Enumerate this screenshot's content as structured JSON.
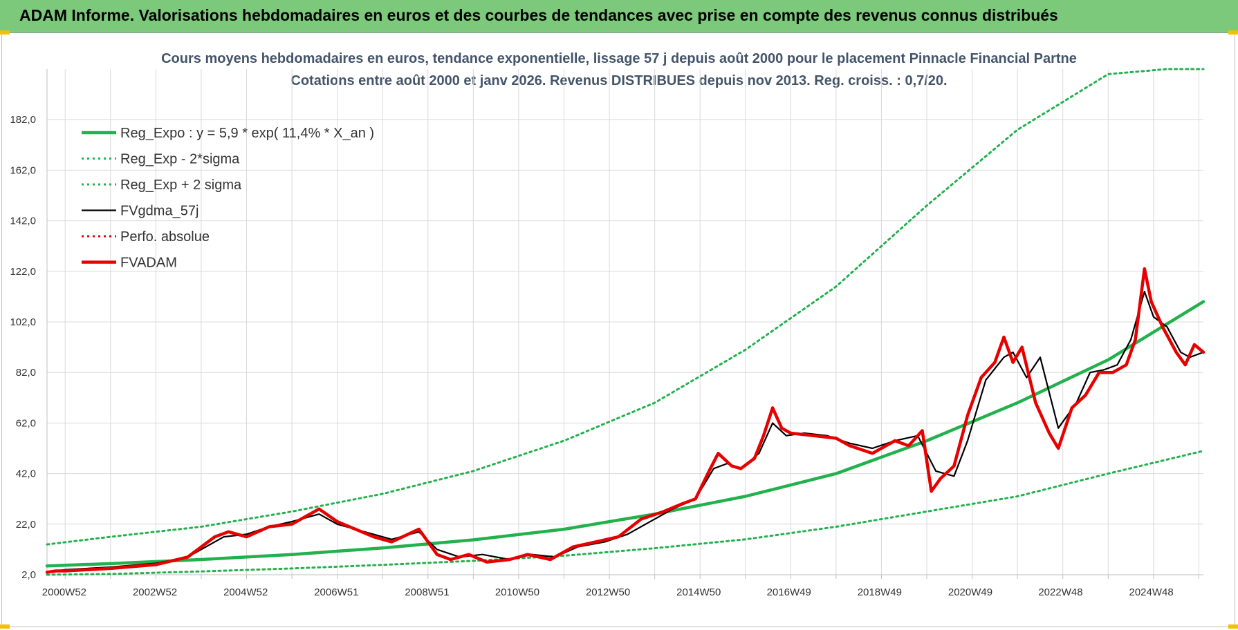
{
  "header": {
    "title": "ADAM Informe. Valorisations hebdomadaires en euros et des courbes de tendances avec prise en compte des revenus connus distribués"
  },
  "chart_data": {
    "type": "line",
    "title": "Cours moyens hebdomadaires en euros, tendance exponentielle, lissage 57 j depuis août 2000 pour le placement Pinnacle Financial Partne",
    "subtitle": "Cotations entre août 2000 et janv 2026. Revenus DISTRIBUES depuis nov 2013. Reg. croiss. : 0,7/20.",
    "xlabel": "",
    "ylabel": "",
    "x_range": [
      2000.6,
      2026.1
    ],
    "ylim": [
      2,
      202
    ],
    "y_ticks": [
      "2,0",
      "22,0",
      "42,0",
      "62,0",
      "82,0",
      "102,0",
      "122,0",
      "142,0",
      "162,0",
      "182,0"
    ],
    "x_ticks": [
      "2000W52",
      "2002W52",
      "2004W52",
      "2006W51",
      "2008W51",
      "2010W50",
      "2012W50",
      "2014W50",
      "2016W49",
      "2018W49",
      "2020W49",
      "2022W48",
      "2024W48"
    ],
    "x_tick_years": [
      2000.98,
      2002.98,
      2004.98,
      2006.98,
      2008.98,
      2010.97,
      2012.97,
      2014.97,
      2016.96,
      2018.96,
      2020.96,
      2022.95,
      2024.95
    ],
    "grid": true,
    "legend_position": "top-left",
    "series": [
      {
        "name": "Reg_Expo : y = 5,9 * exp( 11,4% *  X_an )",
        "color": "#22b14c",
        "style": "solid-thick",
        "x": [
          2000.6,
          2002,
          2004,
          2006,
          2008,
          2010,
          2012,
          2014,
          2016,
          2018,
          2020,
          2022,
          2024,
          2026.1
        ],
        "y": [
          5.5,
          6.4,
          8.0,
          10.0,
          12.6,
          15.8,
          20.0,
          26.0,
          33.0,
          42.0,
          55.0,
          70.0,
          87.0,
          110.0
        ]
      },
      {
        "name": "Reg_Exp - 2*sigma",
        "color": "#22b14c",
        "style": "dotted",
        "x": [
          2000.6,
          2002,
          2004,
          2006,
          2008,
          2010,
          2012,
          2014,
          2016,
          2018,
          2020,
          2022,
          2024,
          2026.1
        ],
        "y": [
          2.0,
          2.3,
          3.3,
          4.5,
          5.9,
          7.5,
          9.5,
          12.5,
          16.0,
          21.0,
          27.0,
          33.0,
          42.0,
          51.0
        ]
      },
      {
        "name": "Reg_Exp + 2 sigma",
        "color": "#22b14c",
        "style": "dotted",
        "x": [
          2000.6,
          2002,
          2004,
          2006,
          2008,
          2010,
          2012,
          2014,
          2016,
          2018,
          2020,
          2022,
          2024,
          2025.3,
          2026.1
        ],
        "y": [
          14.0,
          17.0,
          21.0,
          27.0,
          34.0,
          43.0,
          55.0,
          70.0,
          91.0,
          116.0,
          148.0,
          178.0,
          200.0,
          202.0,
          202.0
        ]
      },
      {
        "name": "FVgdma_57j",
        "color": "#000000",
        "style": "solid",
        "x": [
          2000.6,
          2001,
          2002,
          2003,
          2003.7,
          2004.5,
          2005,
          2005.5,
          2006,
          2006.6,
          2007,
          2007.6,
          2008.2,
          2008.8,
          2009.2,
          2009.7,
          2010.2,
          2010.8,
          2011.3,
          2011.8,
          2012.3,
          2012.9,
          2013.4,
          2013.9,
          2014.4,
          2014.9,
          2015.3,
          2015.6,
          2015.9,
          2016.3,
          2016.6,
          2016.9,
          2017.3,
          2017.8,
          2018.3,
          2018.8,
          2019.3,
          2019.8,
          2020.2,
          2020.6,
          2020.9,
          2021.3,
          2021.7,
          2021.9,
          2022.2,
          2022.5,
          2022.9,
          2023.3,
          2023.6,
          2023.9,
          2024.2,
          2024.5,
          2024.8,
          2025.0,
          2025.3,
          2025.6,
          2025.8,
          2026.1
        ],
        "y": [
          3.0,
          4.0,
          5.0,
          6.5,
          9.0,
          17.0,
          18.0,
          21.0,
          23.0,
          26.0,
          22.0,
          19.0,
          16.0,
          19.0,
          12.0,
          9.0,
          10.0,
          8.0,
          10.0,
          9.0,
          13.0,
          15.0,
          18.0,
          23.0,
          28.0,
          32.0,
          44.0,
          46.0,
          44.0,
          50.0,
          62.0,
          57.0,
          58.0,
          57.0,
          54.0,
          52.0,
          55.0,
          57.0,
          43.0,
          41.0,
          55.0,
          79.0,
          88.0,
          90.0,
          80.0,
          88.0,
          60.0,
          70.0,
          82.0,
          83.0,
          85.0,
          95.0,
          114.0,
          104.0,
          100.0,
          90.0,
          88.0,
          90.0
        ]
      },
      {
        "name": "Perfo. absolue",
        "color": "#e60000",
        "style": "dotted",
        "x": [],
        "y": []
      },
      {
        "name": "FVADAM",
        "color": "#e60000",
        "style": "solid-thick",
        "x": [
          2000.6,
          2000.8,
          2001,
          2002,
          2003,
          2003.7,
          2004.3,
          2004.6,
          2005,
          2005.5,
          2006,
          2006.3,
          2006.6,
          2007,
          2007.4,
          2007.8,
          2008.2,
          2008.8,
          2009.2,
          2009.5,
          2009.9,
          2010.3,
          2010.8,
          2011.2,
          2011.7,
          2012.2,
          2012.7,
          2013.2,
          2013.7,
          2014.2,
          2014.6,
          2014.9,
          2015.2,
          2015.4,
          2015.7,
          2015.9,
          2016.2,
          2016.4,
          2016.6,
          2016.8,
          2017.0,
          2017.5,
          2018.0,
          2018.3,
          2018.8,
          2019.3,
          2019.6,
          2019.9,
          2020.1,
          2020.3,
          2020.6,
          2020.9,
          2021.2,
          2021.5,
          2021.7,
          2021.9,
          2022.1,
          2022.4,
          2022.7,
          2022.9,
          2023.2,
          2023.5,
          2023.8,
          2024.1,
          2024.4,
          2024.6,
          2024.8,
          2024.95,
          2025.2,
          2025.5,
          2025.7,
          2025.9,
          2026.1
        ],
        "y": [
          3.0,
          3.5,
          3.5,
          4.5,
          6.0,
          9.0,
          17.0,
          19.0,
          17.0,
          21.0,
          22.0,
          25.0,
          28.0,
          23.0,
          20.0,
          17.0,
          15.0,
          20.0,
          10.0,
          8.0,
          10.0,
          7.0,
          8.0,
          10.0,
          8.0,
          13.0,
          15.0,
          17.0,
          24.0,
          27.0,
          30.0,
          32.0,
          43.0,
          50.0,
          45.0,
          44.0,
          48.0,
          57.0,
          68.0,
          60.0,
          58.0,
          57.0,
          56.0,
          53.0,
          50.0,
          55.0,
          53.0,
          59.0,
          35.0,
          40.0,
          45.0,
          65.0,
          80.0,
          86.0,
          96.0,
          86.0,
          92.0,
          70.0,
          58.0,
          52.0,
          68.0,
          73.0,
          82.0,
          82.0,
          85.0,
          95.0,
          123.0,
          110.0,
          100.0,
          90.0,
          85.0,
          93.0,
          90.0
        ]
      }
    ]
  }
}
